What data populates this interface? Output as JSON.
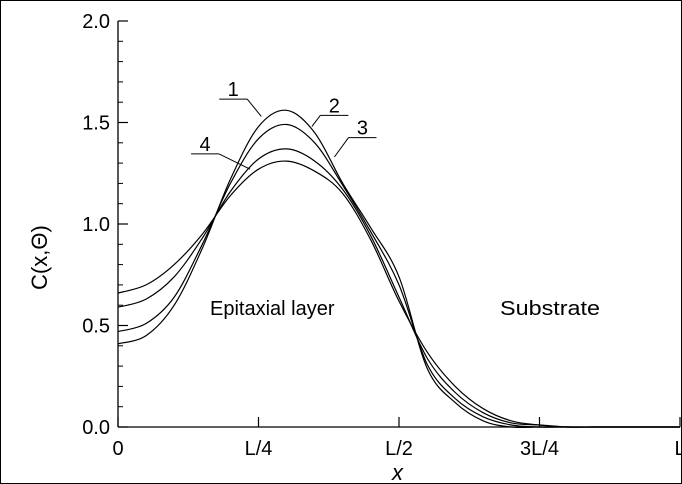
{
  "chart_data": {
    "type": "line",
    "xlabel": "x",
    "ylabel": "C(x,Θ)",
    "xlim": [
      0,
      1
    ],
    "ylim": [
      0,
      2
    ],
    "x_ticks": [
      {
        "value": 0,
        "label": "0"
      },
      {
        "value": 0.25,
        "label": "L/4"
      },
      {
        "value": 0.5,
        "label": "L/2"
      },
      {
        "value": 0.75,
        "label": "3L/4"
      },
      {
        "value": 1.0,
        "label": "L"
      }
    ],
    "y_ticks": [
      {
        "value": 0.0,
        "label": "0.0"
      },
      {
        "value": 0.5,
        "label": "0.5"
      },
      {
        "value": 1.0,
        "label": "1.0"
      },
      {
        "value": 1.5,
        "label": "1.5"
      },
      {
        "value": 2.0,
        "label": "2.0"
      }
    ],
    "y_minor_step": 0.1,
    "annotations": [
      "Epitaxial layer",
      "Substrate"
    ],
    "series": [
      {
        "name": "1",
        "x": [
          0,
          0.05,
          0.1,
          0.15,
          0.2,
          0.25,
          0.3,
          0.35,
          0.4,
          0.45,
          0.5,
          0.55,
          0.6,
          0.65,
          0.7,
          0.75,
          0.8,
          0.85,
          0.9,
          0.95,
          1.0
        ],
        "y": [
          0.41,
          0.45,
          0.6,
          0.88,
          1.22,
          1.48,
          1.56,
          1.45,
          1.2,
          0.98,
          0.74,
          0.29,
          0.12,
          0.03,
          0.0,
          0.0,
          0.0,
          0.0,
          0.0,
          0.0,
          0.0
        ]
      },
      {
        "name": "2",
        "x": [
          0,
          0.05,
          0.1,
          0.15,
          0.2,
          0.25,
          0.3,
          0.35,
          0.4,
          0.45,
          0.5,
          0.55,
          0.6,
          0.65,
          0.7,
          0.75,
          0.8,
          0.85,
          0.9,
          0.95,
          1.0
        ],
        "y": [
          0.47,
          0.51,
          0.64,
          0.9,
          1.2,
          1.42,
          1.49,
          1.4,
          1.19,
          0.96,
          0.7,
          0.31,
          0.14,
          0.05,
          0.01,
          0.0,
          0.0,
          0.0,
          0.0,
          0.0,
          0.0
        ]
      },
      {
        "name": "3",
        "x": [
          0,
          0.05,
          0.1,
          0.15,
          0.2,
          0.25,
          0.3,
          0.35,
          0.4,
          0.45,
          0.5,
          0.55,
          0.6,
          0.65,
          0.7,
          0.75,
          0.8,
          0.85,
          0.9,
          0.95,
          1.0
        ],
        "y": [
          0.59,
          0.63,
          0.74,
          0.93,
          1.16,
          1.32,
          1.37,
          1.31,
          1.17,
          0.94,
          0.64,
          0.34,
          0.17,
          0.07,
          0.02,
          0.01,
          0.0,
          0.0,
          0.0,
          0.0,
          0.0
        ]
      },
      {
        "name": "4",
        "x": [
          0,
          0.05,
          0.1,
          0.15,
          0.2,
          0.25,
          0.3,
          0.35,
          0.4,
          0.45,
          0.5,
          0.55,
          0.6,
          0.65,
          0.7,
          0.75,
          0.8,
          0.85,
          0.9,
          0.95,
          1.0
        ],
        "y": [
          0.66,
          0.7,
          0.8,
          0.95,
          1.14,
          1.27,
          1.31,
          1.26,
          1.15,
          0.92,
          0.62,
          0.37,
          0.2,
          0.09,
          0.03,
          0.01,
          0.0,
          0.0,
          0.0,
          0.0,
          0.0
        ]
      }
    ]
  }
}
